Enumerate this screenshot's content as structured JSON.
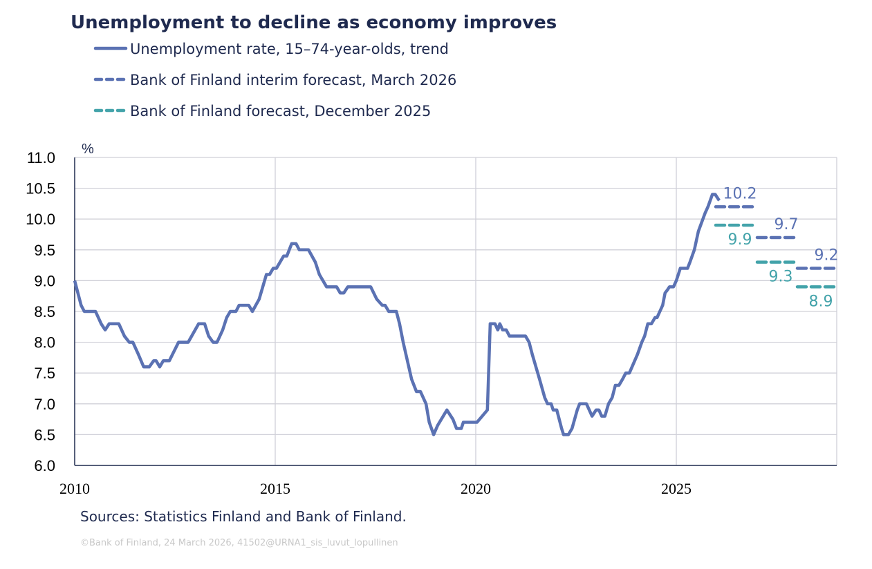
{
  "chart_data": {
    "type": "line",
    "title": "Unemployment to decline as economy improves",
    "ylabel": "%",
    "xlim": [
      2010,
      2029
    ],
    "ylim": [
      6.0,
      11.0
    ],
    "yticks": [
      "11.0",
      "10.5",
      "10.0",
      "9.5",
      "9.0",
      "8.5",
      "8.0",
      "7.5",
      "7.0",
      "6.5",
      "6.0"
    ],
    "xticks": [
      "2010",
      "2015",
      "2020",
      "2025"
    ],
    "grid": true,
    "legend_position": "top-left",
    "colors": {
      "trend": "#5b72b3",
      "march": "#5b72b3",
      "december": "#43a3aa",
      "title": "#1f2a4f"
    },
    "series": [
      {
        "name": "Unemployment rate, 15–74-year-olds, trend",
        "style": "solid",
        "points": [
          [
            2010.0,
            9.0
          ],
          [
            2010.16,
            8.6
          ],
          [
            2010.24,
            8.5
          ],
          [
            2010.52,
            8.5
          ],
          [
            2010.66,
            8.3
          ],
          [
            2010.76,
            8.2
          ],
          [
            2010.86,
            8.3
          ],
          [
            2011.1,
            8.3
          ],
          [
            2011.24,
            8.1
          ],
          [
            2011.36,
            8.0
          ],
          [
            2011.45,
            8.0
          ],
          [
            2011.59,
            7.8
          ],
          [
            2011.72,
            7.6
          ],
          [
            2011.86,
            7.6
          ],
          [
            2011.97,
            7.7
          ],
          [
            2012.03,
            7.7
          ],
          [
            2012.12,
            7.6
          ],
          [
            2012.21,
            7.7
          ],
          [
            2012.36,
            7.7
          ],
          [
            2012.59,
            8.0
          ],
          [
            2012.83,
            8.0
          ],
          [
            2013.09,
            8.3
          ],
          [
            2013.24,
            8.3
          ],
          [
            2013.34,
            8.1
          ],
          [
            2013.45,
            8.0
          ],
          [
            2013.55,
            8.0
          ],
          [
            2013.69,
            8.2
          ],
          [
            2013.79,
            8.4
          ],
          [
            2013.88,
            8.5
          ],
          [
            2014.02,
            8.5
          ],
          [
            2014.1,
            8.6
          ],
          [
            2014.34,
            8.6
          ],
          [
            2014.43,
            8.5
          ],
          [
            2014.6,
            8.7
          ],
          [
            2014.78,
            9.1
          ],
          [
            2014.86,
            9.1
          ],
          [
            2014.95,
            9.2
          ],
          [
            2015.03,
            9.2
          ],
          [
            2015.21,
            9.4
          ],
          [
            2015.29,
            9.4
          ],
          [
            2015.41,
            9.6
          ],
          [
            2015.52,
            9.6
          ],
          [
            2015.6,
            9.5
          ],
          [
            2015.83,
            9.5
          ],
          [
            2016.0,
            9.3
          ],
          [
            2016.1,
            9.1
          ],
          [
            2016.28,
            8.9
          ],
          [
            2016.53,
            8.9
          ],
          [
            2016.62,
            8.8
          ],
          [
            2016.71,
            8.8
          ],
          [
            2016.81,
            8.9
          ],
          [
            2017.38,
            8.9
          ],
          [
            2017.53,
            8.7
          ],
          [
            2017.67,
            8.6
          ],
          [
            2017.74,
            8.6
          ],
          [
            2017.83,
            8.5
          ],
          [
            2018.02,
            8.5
          ],
          [
            2018.1,
            8.3
          ],
          [
            2018.19,
            8.0
          ],
          [
            2018.4,
            7.4
          ],
          [
            2018.52,
            7.2
          ],
          [
            2018.62,
            7.2
          ],
          [
            2018.76,
            7.0
          ],
          [
            2018.84,
            6.7
          ],
          [
            2018.95,
            6.5
          ],
          [
            2019.05,
            6.65
          ],
          [
            2019.28,
            6.9
          ],
          [
            2019.43,
            6.75
          ],
          [
            2019.52,
            6.6
          ],
          [
            2019.64,
            6.6
          ],
          [
            2019.69,
            6.7
          ],
          [
            2020.03,
            6.7
          ],
          [
            2020.16,
            6.8
          ],
          [
            2020.29,
            6.9
          ],
          [
            2020.36,
            8.3
          ],
          [
            2020.48,
            8.3
          ],
          [
            2020.55,
            8.2
          ],
          [
            2020.6,
            8.3
          ],
          [
            2020.67,
            8.2
          ],
          [
            2020.76,
            8.2
          ],
          [
            2020.84,
            8.1
          ],
          [
            2021.24,
            8.1
          ],
          [
            2021.33,
            8.0
          ],
          [
            2021.41,
            7.8
          ],
          [
            2021.59,
            7.4
          ],
          [
            2021.72,
            7.1
          ],
          [
            2021.79,
            7.0
          ],
          [
            2021.88,
            7.0
          ],
          [
            2021.93,
            6.9
          ],
          [
            2022.02,
            6.9
          ],
          [
            2022.14,
            6.6
          ],
          [
            2022.19,
            6.5
          ],
          [
            2022.31,
            6.5
          ],
          [
            2022.4,
            6.6
          ],
          [
            2022.53,
            6.9
          ],
          [
            2022.59,
            7.0
          ],
          [
            2022.76,
            7.0
          ],
          [
            2022.9,
            6.8
          ],
          [
            2023.0,
            6.9
          ],
          [
            2023.07,
            6.9
          ],
          [
            2023.14,
            6.8
          ],
          [
            2023.22,
            6.8
          ],
          [
            2023.31,
            7.0
          ],
          [
            2023.4,
            7.1
          ],
          [
            2023.48,
            7.3
          ],
          [
            2023.57,
            7.3
          ],
          [
            2023.66,
            7.4
          ],
          [
            2023.74,
            7.5
          ],
          [
            2023.83,
            7.5
          ],
          [
            2024.03,
            7.8
          ],
          [
            2024.14,
            8.0
          ],
          [
            2024.21,
            8.1
          ],
          [
            2024.29,
            8.3
          ],
          [
            2024.38,
            8.3
          ],
          [
            2024.47,
            8.4
          ],
          [
            2024.52,
            8.4
          ],
          [
            2024.66,
            8.6
          ],
          [
            2024.72,
            8.8
          ],
          [
            2024.78,
            8.85
          ],
          [
            2024.83,
            8.9
          ],
          [
            2024.93,
            8.9
          ],
          [
            2025.0,
            9.0
          ],
          [
            2025.1,
            9.2
          ],
          [
            2025.28,
            9.2
          ],
          [
            2025.34,
            9.3
          ],
          [
            2025.45,
            9.5
          ],
          [
            2025.55,
            9.8
          ],
          [
            2025.72,
            10.1
          ],
          [
            2025.79,
            10.2
          ],
          [
            2025.9,
            10.4
          ],
          [
            2025.97,
            10.4
          ],
          [
            2026.07,
            10.3
          ]
        ]
      },
      {
        "name": "Bank of Finland interim forecast, March 2026",
        "style": "dashed",
        "points": [
          [
            2026,
            10.2
          ],
          [
            2027,
            9.7
          ],
          [
            2028,
            9.2
          ]
        ],
        "labels": [
          "10.2",
          "9.7",
          "9.2"
        ]
      },
      {
        "name": "Bank of Finland forecast, December 2025",
        "style": "dashed",
        "points": [
          [
            2026,
            9.9
          ],
          [
            2027,
            9.3
          ],
          [
            2028,
            8.9
          ]
        ],
        "labels": [
          "9.9",
          "9.3",
          "8.9"
        ]
      }
    ]
  },
  "footer": {
    "sources": "Sources: Statistics Finland and Bank of Finland.",
    "copyright": "©Bank of Finland, 24 March 2026, 41502@URNA1_sis_luvut_lopullinen"
  }
}
